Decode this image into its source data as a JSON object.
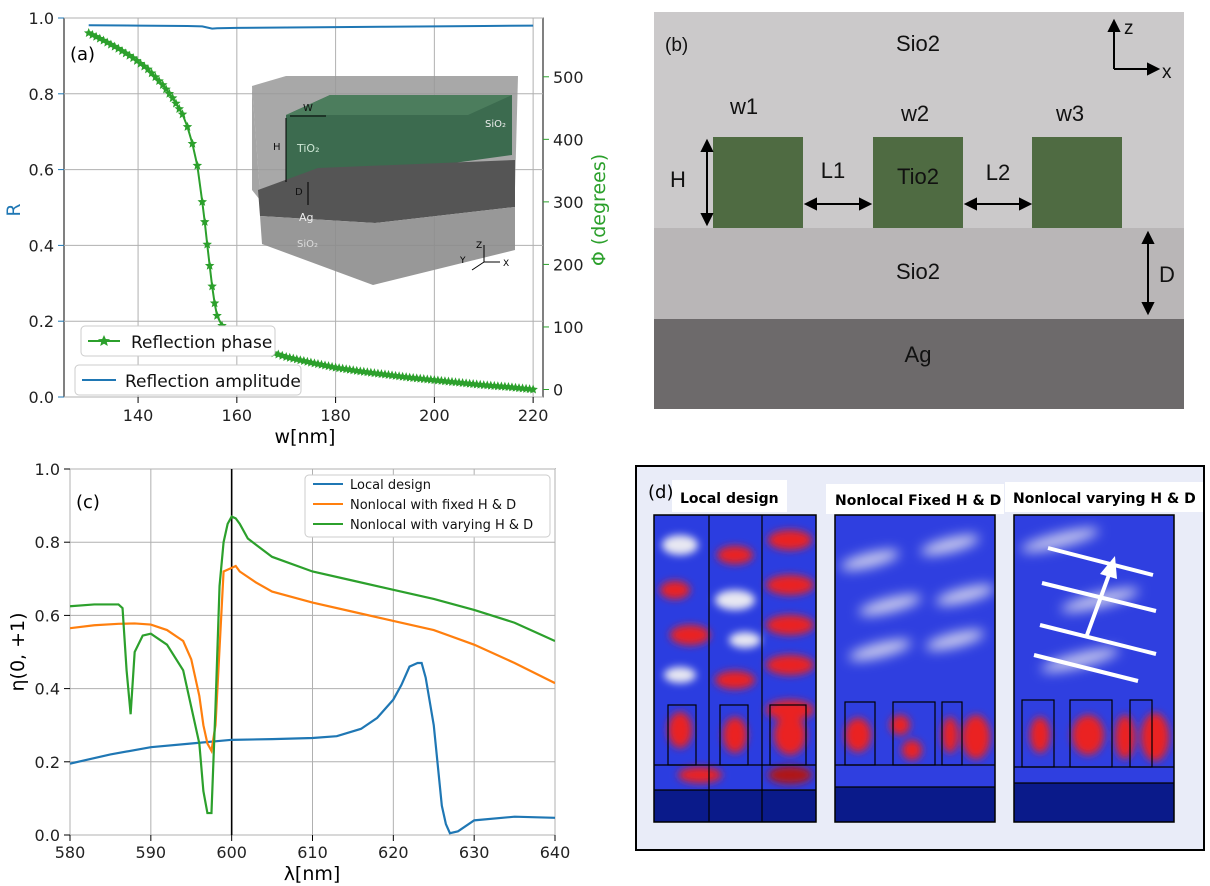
{
  "panel_a": {
    "label": "(a)",
    "xlabel": "w[nm]",
    "ylabel_left": "R",
    "ylabel_right": "Φ (degrees)",
    "xticks": [
      "140",
      "160",
      "180",
      "200",
      "220"
    ],
    "yticks_left": [
      "0.0",
      "0.2",
      "0.4",
      "0.6",
      "0.8",
      "1.0"
    ],
    "yticks_right": [
      "0",
      "100",
      "200",
      "300",
      "400",
      "500"
    ],
    "legend": [
      "Reflection phase",
      "Reflection amplitude"
    ],
    "inset": {
      "w": "W",
      "h": "H",
      "d": "D",
      "tio2": "TiO₂",
      "ag": "Ag",
      "sio2_top": "SiO₂",
      "sio2_bottom": "SiO₂",
      "axis_z": "Z",
      "axis_y": "Y",
      "axis_x": "X"
    }
  },
  "panel_b": {
    "label": "(b)",
    "top_layer": "Sio2",
    "middle_layer": "Sio2",
    "bottom_layer": "Ag",
    "pillar_material": "Tio2",
    "w1": "w1",
    "w2": "w2",
    "w3": "w3",
    "h": "H",
    "d": "D",
    "l1": "L1",
    "l2": "L2",
    "axis_z": "z",
    "axis_x": "x"
  },
  "panel_c": {
    "label": "(c)",
    "xlabel": "λ[nm]",
    "ylabel": "η(0, +1)",
    "xticks": [
      "580",
      "590",
      "600",
      "610",
      "620",
      "630",
      "640"
    ],
    "yticks": [
      "0.0",
      "0.2",
      "0.4",
      "0.6",
      "0.8",
      "1.0"
    ]
  },
  "panel_d": {
    "label": "(d)",
    "titles": [
      "Local design",
      "Nonlocal Fixed H & D",
      "Nonlocal varying H & D"
    ]
  },
  "chart_data": [
    {
      "type": "line",
      "panel": "a",
      "xlabel": "w[nm]",
      "ylabel": "R",
      "y2label": "Φ (degrees)",
      "xlim": [
        125,
        222
      ],
      "ylim": [
        0,
        1.0
      ],
      "y2lim": [
        -12,
        594
      ],
      "grid": true,
      "legend": "bottom-left",
      "series": [
        {
          "name": "Reflection phase",
          "axis": "right",
          "color": "#2ca02c",
          "marker": "star",
          "x": [
            130,
            133,
            136,
            139,
            142,
            145,
            147,
            149,
            150,
            151,
            152,
            153,
            153.5,
            154,
            154.5,
            155,
            155.5,
            156,
            157,
            158,
            160,
            163,
            166,
            170,
            175,
            180,
            185,
            190,
            195,
            200,
            205,
            210,
            215,
            220
          ],
          "y": [
            570,
            558,
            545,
            530,
            512,
            487,
            466,
            440,
            420,
            393,
            358,
            300,
            268,
            232,
            198,
            165,
            138,
            118,
            102,
            92,
            80,
            70,
            62,
            52,
            43,
            35,
            29,
            24,
            19,
            15,
            11,
            7,
            4,
            0
          ]
        },
        {
          "name": "Reflection amplitude",
          "axis": "left",
          "color": "#1f77b4",
          "x": [
            130,
            140,
            150,
            153,
            154,
            155,
            156,
            160,
            170,
            180,
            190,
            200,
            210,
            220
          ],
          "y": [
            0.981,
            0.98,
            0.979,
            0.978,
            0.975,
            0.972,
            0.973,
            0.974,
            0.975,
            0.976,
            0.977,
            0.978,
            0.979,
            0.98
          ]
        }
      ]
    },
    {
      "type": "line",
      "panel": "c",
      "xlabel": "λ[nm]",
      "ylabel": "η(0, +1)",
      "xlim": [
        580,
        640
      ],
      "ylim": [
        0,
        1.0
      ],
      "grid": true,
      "legend": "top-right",
      "vline": 600,
      "series": [
        {
          "name": "Local design",
          "color": "#1f77b4",
          "x": [
            580,
            585,
            590,
            595,
            600,
            605,
            610,
            613,
            616,
            618,
            620,
            621,
            622,
            623,
            623.5,
            624,
            625,
            626,
            626.5,
            627,
            628,
            630,
            635,
            640
          ],
          "y": [
            0.195,
            0.22,
            0.24,
            0.25,
            0.26,
            0.262,
            0.265,
            0.27,
            0.29,
            0.32,
            0.37,
            0.41,
            0.46,
            0.47,
            0.47,
            0.43,
            0.3,
            0.08,
            0.03,
            0.005,
            0.01,
            0.04,
            0.05,
            0.047
          ]
        },
        {
          "name": "Nonlocal with  fixed H & D",
          "color": "#ff7f0e",
          "x": [
            580,
            583,
            586,
            588,
            590,
            592,
            594,
            595,
            596,
            596.5,
            597,
            597.5,
            598,
            599,
            600,
            600.5,
            601,
            603,
            605,
            610,
            615,
            620,
            625,
            630,
            635,
            640
          ],
          "y": [
            0.565,
            0.573,
            0.577,
            0.578,
            0.575,
            0.56,
            0.53,
            0.48,
            0.38,
            0.3,
            0.25,
            0.23,
            0.3,
            0.72,
            0.73,
            0.735,
            0.72,
            0.69,
            0.665,
            0.635,
            0.61,
            0.585,
            0.56,
            0.52,
            0.47,
            0.415
          ]
        },
        {
          "name": "Nonlocal with varying H & D",
          "color": "#2ca02c",
          "x": [
            580,
            583,
            586,
            586.5,
            587,
            587.5,
            588,
            589,
            590,
            592,
            594,
            596,
            596.5,
            597,
            597.5,
            598,
            598.5,
            599,
            599.5,
            600,
            600.5,
            601,
            602,
            605,
            610,
            615,
            620,
            625,
            630,
            635,
            640
          ],
          "y": [
            0.625,
            0.63,
            0.63,
            0.62,
            0.45,
            0.33,
            0.5,
            0.545,
            0.55,
            0.52,
            0.45,
            0.25,
            0.12,
            0.06,
            0.06,
            0.35,
            0.68,
            0.8,
            0.85,
            0.87,
            0.865,
            0.85,
            0.81,
            0.76,
            0.72,
            0.695,
            0.67,
            0.645,
            0.615,
            0.58,
            0.53
          ]
        }
      ]
    }
  ]
}
